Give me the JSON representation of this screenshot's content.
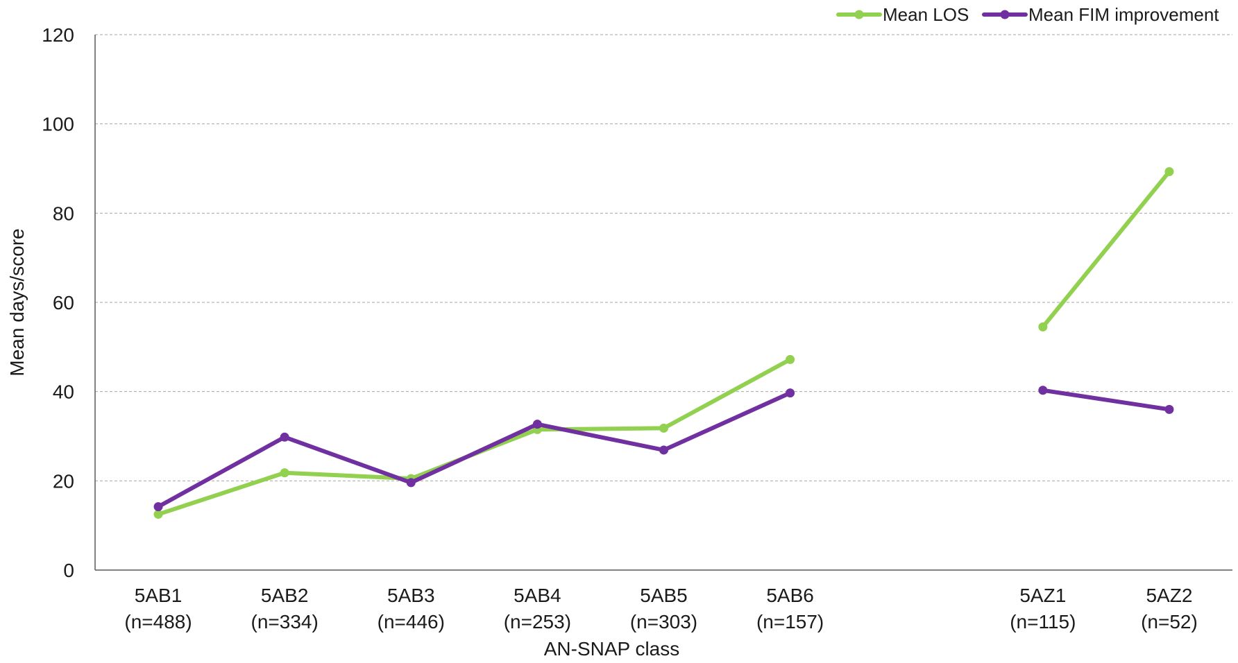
{
  "chart_data": {
    "type": "line",
    "categories": [
      "5AB1",
      "5AB2",
      "5AB3",
      "5AB4",
      "5AB5",
      "5AB6",
      "",
      "5AZ1",
      "5AZ2"
    ],
    "category_counts": [
      "(n=488)",
      "(n=334)",
      "(n=446)",
      "(n=253)",
      "(n=303)",
      "(n=157)",
      "",
      "(n=115)",
      "(n=52)"
    ],
    "series": [
      {
        "name": "Mean LOS",
        "color": "#92d050",
        "values": [
          12.5,
          21.8,
          20.5,
          31.5,
          31.8,
          47.2,
          null,
          54.5,
          89.3
        ]
      },
      {
        "name": "Mean FIM improvement",
        "color": "#7030a0",
        "values": [
          14.2,
          29.8,
          19.6,
          32.7,
          26.9,
          39.7,
          null,
          40.3,
          36.0
        ]
      }
    ],
    "title": "",
    "xlabel": "AN-SNAP class",
    "ylabel": "Mean days/score",
    "ylim": [
      0,
      120
    ],
    "yticks": [
      0,
      20,
      40,
      60,
      80,
      100,
      120
    ],
    "grid": true,
    "legend_position": "top-right"
  }
}
